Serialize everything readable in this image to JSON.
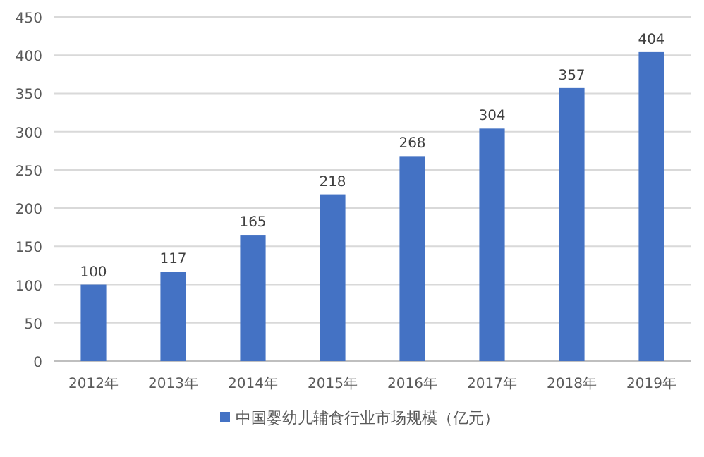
{
  "chart_data": {
    "type": "bar",
    "categories": [
      "2012年",
      "2013年",
      "2014年",
      "2015年",
      "2016年",
      "2017年",
      "2018年",
      "2019年"
    ],
    "series": [
      {
        "name": "中国婴幼儿辅食行业市场规模（亿元）",
        "color": "#4472c4",
        "values": [
          100,
          117,
          165,
          218,
          268,
          304,
          357,
          404
        ]
      }
    ],
    "ylim": [
      0,
      450
    ],
    "yticks": [
      0,
      50,
      100,
      150,
      200,
      250,
      300,
      350,
      400,
      450
    ],
    "grid": "y",
    "legend": "bottom",
    "data_labels": true
  }
}
